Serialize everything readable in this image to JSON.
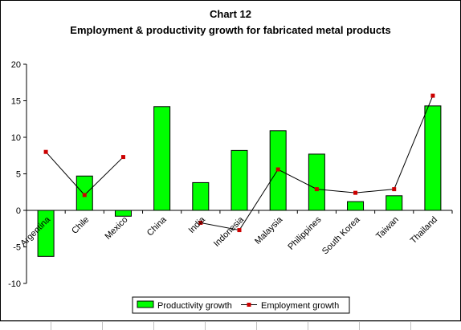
{
  "chart_data": {
    "type": "bar",
    "title": "Chart 12",
    "subtitle": "Employment & productivity growth for fabricated metal products",
    "categories": [
      "Argentina",
      "Chile",
      "Mexico",
      "China",
      "India",
      "Indonesia",
      "Malaysia",
      "Philippines",
      "South Korea",
      "Taiwan",
      "Thailand"
    ],
    "series": [
      {
        "name": "Productivity growth",
        "kind": "bar",
        "color": "#00ff00",
        "values": [
          -6.3,
          4.7,
          -0.8,
          14.2,
          3.8,
          8.2,
          10.9,
          7.7,
          1.2,
          2.0,
          14.3
        ]
      },
      {
        "name": "Employment growth",
        "kind": "line",
        "color": "#000000",
        "marker_color": "#cc0000",
        "values": [
          8.0,
          2.1,
          7.3,
          null,
          -1.7,
          -2.7,
          5.6,
          2.9,
          2.4,
          2.9,
          15.7
        ]
      }
    ],
    "xlabel": "",
    "ylabel": "",
    "ylim": [
      -10,
      20
    ],
    "yticks": [
      -10,
      -5,
      0,
      5,
      10,
      15,
      20
    ],
    "grid": false,
    "legend": "bottom-center"
  }
}
